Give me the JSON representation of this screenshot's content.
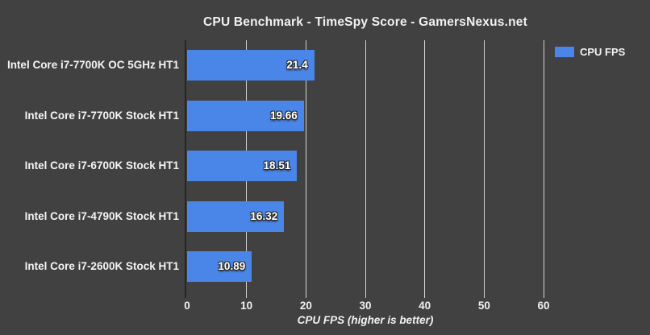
{
  "title": "CPU Benchmark - TimeSpy Score - GamersNexus.net",
  "legend": {
    "label": "CPU FPS",
    "swatch_color": "#4a86e8"
  },
  "chart_data": {
    "type": "bar",
    "orientation": "horizontal",
    "title": "CPU Benchmark - TimeSpy Score - GamersNexus.net",
    "categories": [
      "Intel Core i7-7700K OC 5GHz HT1",
      "Intel Core i7-7700K Stock HT1",
      "Intel Core i7-6700K Stock HT1",
      "Intel Core i7-4790K Stock HT1",
      "Intel Core i7-2600K Stock HT1"
    ],
    "values": [
      21.4,
      19.66,
      18.51,
      16.32,
      10.89
    ],
    "value_labels": [
      "21.4",
      "19.66",
      "18.51",
      "16.32",
      "10.89"
    ],
    "xlabel": "CPU FPS (higher is better)",
    "ylabel": "",
    "xlim": [
      0,
      60
    ],
    "xticks": [
      0,
      10,
      20,
      30,
      40,
      50,
      60
    ],
    "legend_entries": [
      "CPU FPS"
    ],
    "legend_position": "top-right",
    "grid": "vertical",
    "bar_color": "#4a86e8",
    "background_color": "#414141",
    "gridline_color": "#d2d2d2",
    "text_color": "#f2f2f2"
  }
}
